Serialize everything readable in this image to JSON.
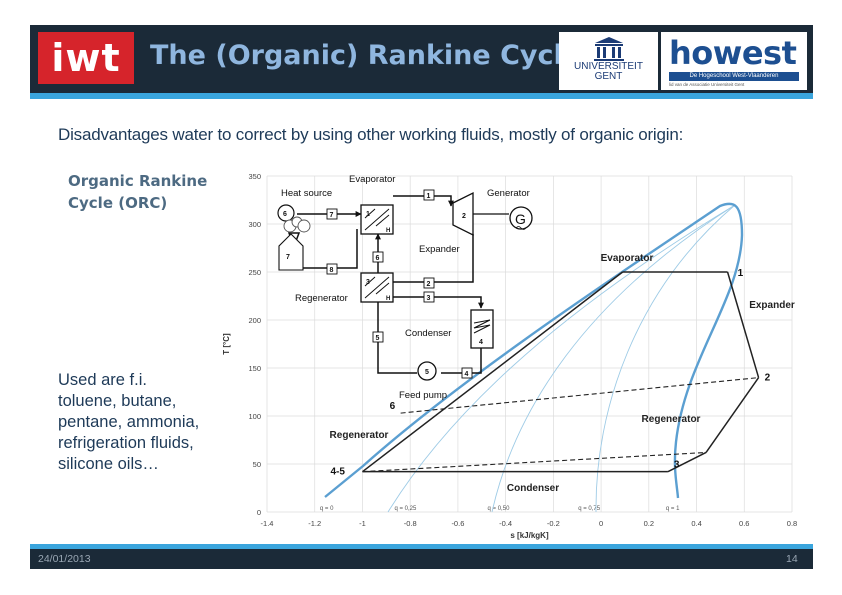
{
  "header": {
    "iwt_logo": "iwt",
    "title": "The (Organic) Rankine Cycle",
    "ugent_logo": [
      "UNIVERSITEIT",
      "GENT"
    ],
    "howest_logo": "howest",
    "howest_subtitle": "De Hogeschool West-Vlaanderen",
    "howest_tagline": "lid van de Associatie Universiteit Gent"
  },
  "intro": "Disadvantages water to correct by using other working fluids, mostly of organic origin:",
  "orc_label": "Organic Rankine\nCycle (ORC)",
  "fluids_text": "Used are f.i.\ntoluene, butane,\npentane, ammonia,\nrefrigeration fluids,\nsilicone oils…",
  "schematic": {
    "evaporator": "Evaporator",
    "heat_source": "Heat source",
    "generator": "Generator",
    "expander": "Expander",
    "regenerator": "Regenerator",
    "condenser": "Condenser",
    "feed_pump": "Feed pump",
    "state_numbers": [
      "1",
      "2",
      "3",
      "4",
      "5",
      "6",
      "7",
      "8"
    ],
    "hx_label": "H"
  },
  "chart_data": {
    "type": "line",
    "xlabel": "s [kJ/kgK]",
    "ylabel": "T [°C]",
    "xlim": [
      -1.4,
      0.8
    ],
    "ylim": [
      0,
      350
    ],
    "xticks": [
      "-1.4",
      "-1.2",
      "-1",
      "-0.8",
      "-0.6",
      "-0.4",
      "-0.2",
      "0",
      "0.2",
      "0.4",
      "0.6",
      "0.8"
    ],
    "yticks": [
      "0",
      "50",
      "100",
      "150",
      "200",
      "250",
      "300",
      "350"
    ],
    "grid": true,
    "quality_labels": [
      "q = 0",
      "q = 0,25",
      "q = 0,50",
      "q = 0,75",
      "q = 1"
    ],
    "cycle_points": [
      {
        "label": "1",
        "s": 0.53,
        "T": 250
      },
      {
        "label": "2",
        "s": 0.66,
        "T": 140
      },
      {
        "label": "3",
        "s": 0.28,
        "T": 42
      },
      {
        "label": "4-5",
        "s": -1.0,
        "T": 42
      },
      {
        "label": "6",
        "s": -0.84,
        "T": 103
      }
    ],
    "evaporation_start": {
      "s": 0.09,
      "T": 250
    },
    "regen_hot_end": {
      "s": 0.44,
      "T": 62
    },
    "annotations": [
      "Evaporator",
      "Expander",
      "Regenerator",
      "Regenerator",
      "Condenser"
    ]
  },
  "footer": {
    "date": "24/01/2013",
    "page": "14"
  }
}
